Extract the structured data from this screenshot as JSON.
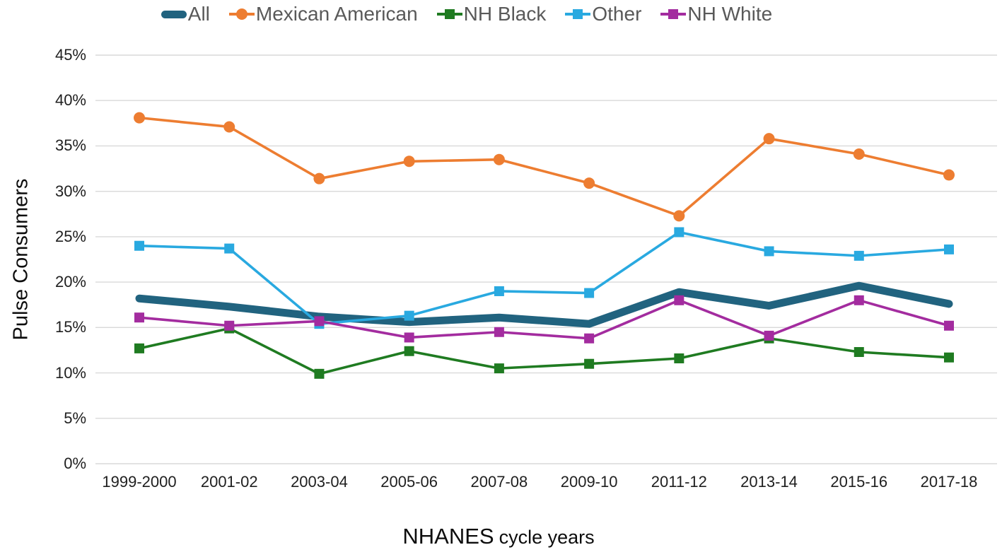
{
  "chart_data": {
    "type": "line",
    "title": "",
    "ylabel": "Pulse Consumers",
    "xlabel_main": "NHANES",
    "xlabel_sub": "cycle years",
    "ylim": [
      0,
      45
    ],
    "ytick_step": 5,
    "ytick_format": "{v}%",
    "grid": "horizontal-only",
    "legend_position": "top-center",
    "categories": [
      "1999-2000",
      "2001-02",
      "2003-04",
      "2005-06",
      "2007-08",
      "2009-10",
      "2011-12",
      "2013-14",
      "2015-16",
      "2017-18"
    ],
    "series": [
      {
        "name": "All",
        "color": "#21637F",
        "marker": "none",
        "line_width": 11,
        "values": [
          18.2,
          17.3,
          16.2,
          15.6,
          16.1,
          15.4,
          18.9,
          17.4,
          19.6,
          17.6
        ]
      },
      {
        "name": "Mexican American",
        "color": "#ED7D31",
        "marker": "circle",
        "line_width": 3.6,
        "values": [
          38.1,
          37.1,
          31.4,
          33.3,
          33.5,
          30.9,
          27.3,
          35.8,
          34.1,
          31.8
        ]
      },
      {
        "name": "NH Black",
        "color": "#1F7B21",
        "marker": "square",
        "line_width": 3.6,
        "values": [
          12.7,
          14.9,
          9.9,
          12.4,
          10.5,
          11.0,
          11.6,
          13.8,
          12.3,
          11.7
        ]
      },
      {
        "name": "Other",
        "color": "#29A9E0",
        "marker": "square",
        "line_width": 3.6,
        "values": [
          24.0,
          23.7,
          15.4,
          16.3,
          19.0,
          18.8,
          25.5,
          23.4,
          22.9,
          23.6
        ]
      },
      {
        "name": "NH White",
        "color": "#A32C9F",
        "marker": "square",
        "line_width": 3.6,
        "values": [
          16.1,
          15.2,
          15.7,
          13.9,
          14.5,
          13.8,
          18.0,
          14.1,
          18.0,
          15.2
        ]
      }
    ]
  },
  "styles": {
    "background": "#FFFFFF",
    "grid_color": "#D9D9D9",
    "axis_text_color": "#1F1F1F",
    "legend_text_color": "#595959"
  }
}
